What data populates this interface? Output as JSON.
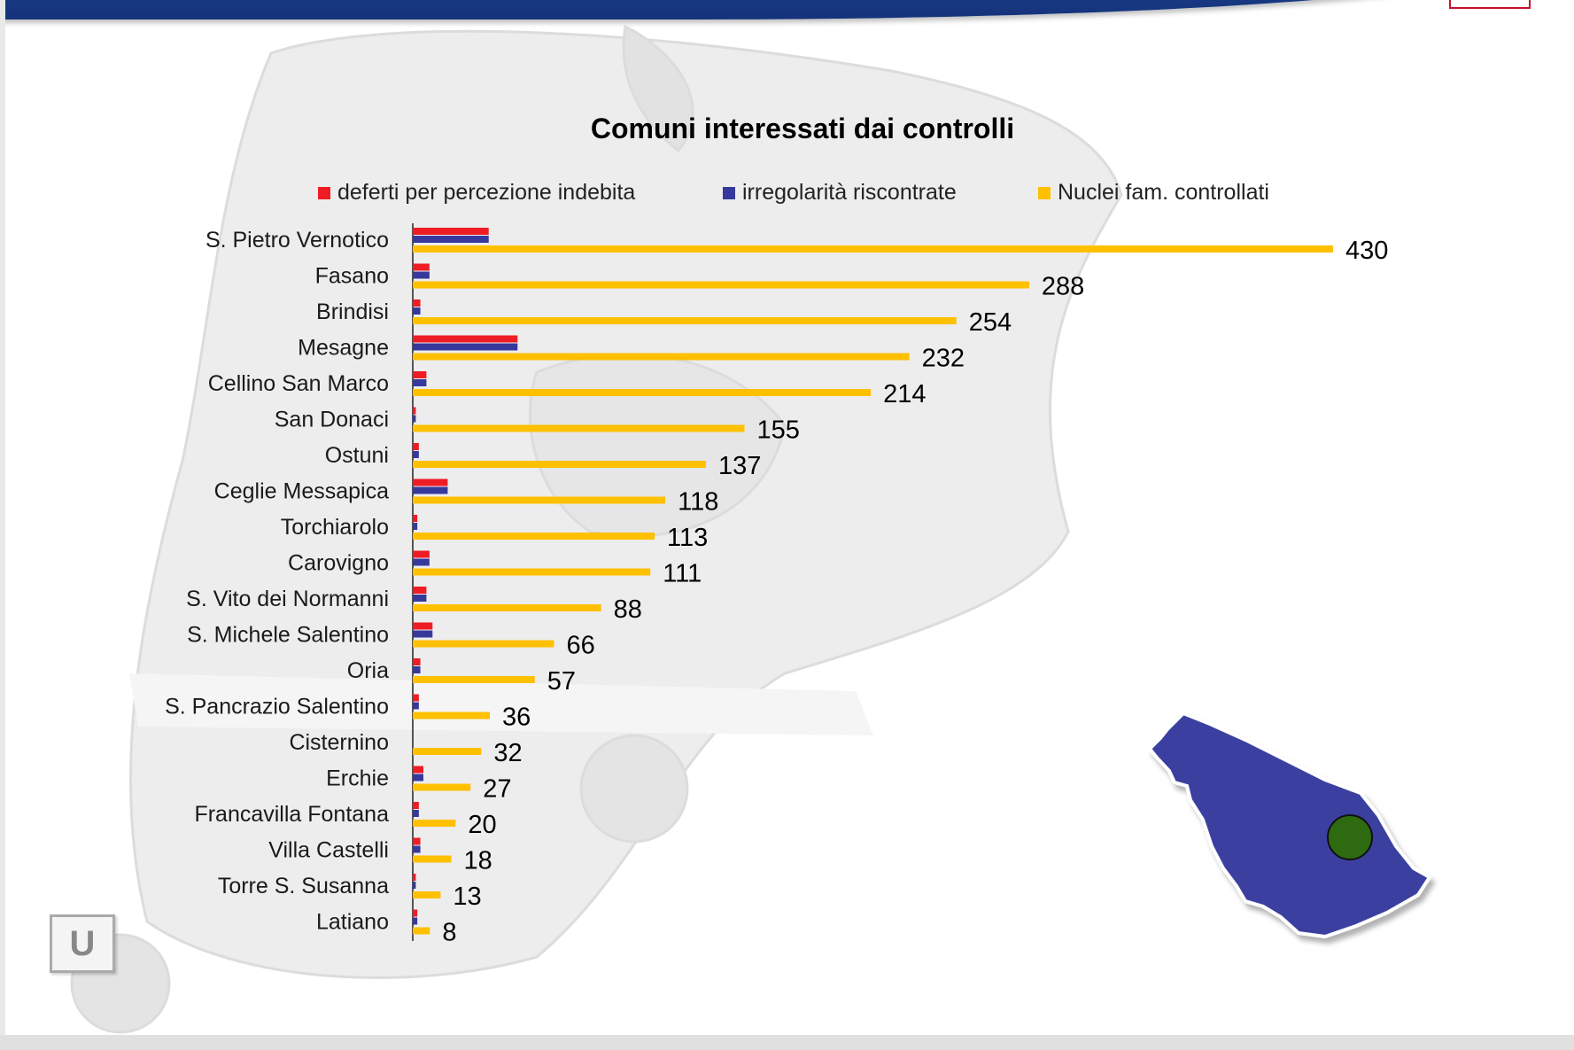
{
  "chart_data": {
    "type": "bar",
    "orientation": "horizontal",
    "title": "Comuni interessati dai controlli",
    "categories": [
      "S. Pietro Vernotico",
      "Fasano",
      "Brindisi",
      "Mesagne",
      "Cellino San Marco",
      "San Donaci",
      "Ostuni",
      "Ceglie Messapica",
      "Torchiarolo",
      "Carovigno",
      "S. Vito dei Normanni",
      "S. Michele Salentino",
      "Oria",
      "S. Pancrazio Salentino",
      "Cisternino",
      "Erchie",
      "Francavilla Fontana",
      "Villa Castelli",
      "Torre S. Susanna",
      "Latiano"
    ],
    "series": [
      {
        "name": "deferti per percezione indebita",
        "color": "#ee1c25",
        "values": [
          50,
          11,
          5,
          69,
          9,
          2,
          4,
          23,
          3,
          11,
          9,
          13,
          5,
          4,
          0,
          7,
          4,
          5,
          2,
          3
        ]
      },
      {
        "name": "irregolarità riscontrate",
        "color": "#36399b",
        "values": [
          50,
          11,
          5,
          69,
          9,
          2,
          4,
          23,
          3,
          11,
          9,
          13,
          5,
          4,
          0,
          7,
          4,
          5,
          2,
          3
        ]
      },
      {
        "name": "Nuclei fam. controllati",
        "color": "#ffc000",
        "values": [
          430,
          288,
          254,
          232,
          214,
          155,
          137,
          118,
          113,
          111,
          88,
          66,
          57,
          36,
          32,
          27,
          20,
          18,
          13,
          8
        ]
      }
    ],
    "data_labels_series": "Nuclei fam. controllati",
    "xlim": [
      0,
      430
    ],
    "legend_position": "top",
    "grid": false
  },
  "map": {
    "region_color": "#3a3fa0",
    "marker_color": "#2e6b10"
  },
  "colors": {
    "header_band": "#1c3f8f",
    "background": "#ffffff"
  }
}
